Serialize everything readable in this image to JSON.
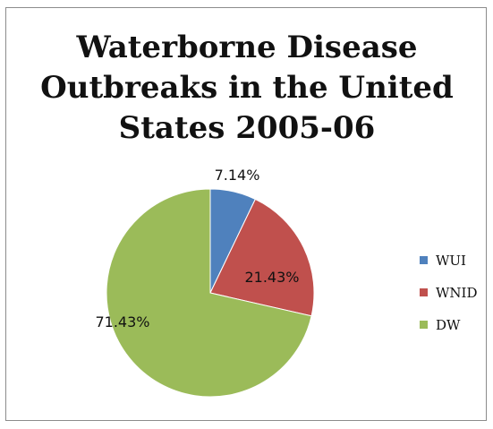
{
  "chart_data": {
    "type": "pie",
    "title": "Waterborne Disease\nOutbreaks in the United\nStates 2005-06",
    "legend_position": "right",
    "slices": [
      {
        "name": "WUI",
        "value": 7.14,
        "label": "7.14%",
        "color": "#4f81bd"
      },
      {
        "name": "WNID",
        "value": 21.43,
        "label": "21.43%",
        "color": "#c0504d"
      },
      {
        "name": "DW",
        "value": 71.43,
        "label": "71.43%",
        "color": "#9bbb59"
      }
    ]
  }
}
